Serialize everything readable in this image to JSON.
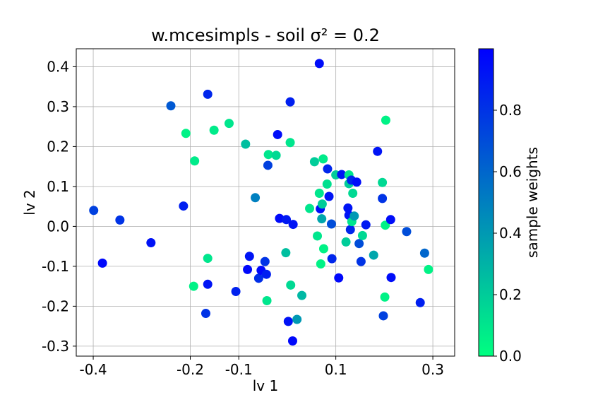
{
  "chart_data": {
    "type": "scatter",
    "title": "w.mcesimpls - soil σ² = 0.2",
    "xlabel": "lv 1",
    "ylabel": "lv 2",
    "xlim": [
      -0.435,
      0.345
    ],
    "ylim": [
      -0.325,
      0.445
    ],
    "xticks": [
      -0.4,
      -0.2,
      -0.1,
      0.1,
      0.3
    ],
    "xtick_labels": [
      "-0.4",
      "-0.2",
      "-0.1",
      "0.1",
      "0.3"
    ],
    "yticks": [
      -0.3,
      -0.2,
      -0.1,
      0.0,
      0.1,
      0.2,
      0.3,
      0.4
    ],
    "ytick_labels": [
      "-0.3",
      "-0.2",
      "-0.1",
      "0.0",
      "0.1",
      "0.2",
      "0.3",
      "0.4"
    ],
    "grid": true,
    "colorbar": {
      "label": "sample weights",
      "range": [
        0.0,
        1.0
      ],
      "ticks": [
        0.0,
        0.2,
        0.4,
        0.6,
        0.8
      ],
      "tick_labels": [
        "0.0",
        "0.2",
        "0.4",
        "0.6",
        "0.8"
      ],
      "colormap": "winter_r",
      "color_low": "#00ff80",
      "color_high": "#0000ff"
    },
    "points": [
      {
        "x": -0.399,
        "y": 0.04,
        "w": 0.75
      },
      {
        "x": -0.381,
        "y": -0.092,
        "w": 0.97
      },
      {
        "x": -0.345,
        "y": 0.016,
        "w": 0.8
      },
      {
        "x": -0.281,
        "y": -0.041,
        "w": 0.93
      },
      {
        "x": -0.24,
        "y": 0.302,
        "w": 0.65
      },
      {
        "x": -0.214,
        "y": 0.051,
        "w": 0.88
      },
      {
        "x": -0.209,
        "y": 0.233,
        "w": 0.05
      },
      {
        "x": -0.193,
        "y": -0.15,
        "w": 0.05
      },
      {
        "x": -0.191,
        "y": 0.164,
        "w": 0.08
      },
      {
        "x": -0.164,
        "y": 0.331,
        "w": 0.85
      },
      {
        "x": -0.164,
        "y": -0.08,
        "w": 0.1
      },
      {
        "x": -0.164,
        "y": -0.145,
        "w": 0.92
      },
      {
        "x": -0.168,
        "y": -0.218,
        "w": 0.8
      },
      {
        "x": -0.151,
        "y": 0.241,
        "w": 0.08
      },
      {
        "x": -0.12,
        "y": 0.258,
        "w": 0.1
      },
      {
        "x": -0.106,
        "y": -0.163,
        "w": 0.87
      },
      {
        "x": -0.086,
        "y": 0.206,
        "w": 0.25
      },
      {
        "x": -0.078,
        "y": -0.075,
        "w": 0.92
      },
      {
        "x": -0.082,
        "y": -0.108,
        "w": 0.97
      },
      {
        "x": -0.066,
        "y": 0.072,
        "w": 0.5
      },
      {
        "x": -0.059,
        "y": -0.13,
        "w": 0.82
      },
      {
        "x": -0.054,
        "y": -0.11,
        "w": 0.97
      },
      {
        "x": -0.046,
        "y": -0.088,
        "w": 0.8
      },
      {
        "x": -0.043,
        "y": -0.12,
        "w": 0.88
      },
      {
        "x": -0.042,
        "y": -0.186,
        "w": 0.1
      },
      {
        "x": -0.04,
        "y": 0.153,
        "w": 0.75
      },
      {
        "x": -0.039,
        "y": 0.18,
        "w": 0.1
      },
      {
        "x": -0.023,
        "y": 0.178,
        "w": 0.15
      },
      {
        "x": -0.02,
        "y": 0.23,
        "w": 0.95
      },
      {
        "x": -0.016,
        "y": 0.02,
        "w": 0.96
      },
      {
        "x": -0.002,
        "y": 0.017,
        "w": 0.9
      },
      {
        "x": -0.003,
        "y": -0.066,
        "w": 0.25
      },
      {
        "x": 0.002,
        "y": -0.238,
        "w": 0.93
      },
      {
        "x": 0.006,
        "y": 0.312,
        "w": 0.88
      },
      {
        "x": 0.006,
        "y": 0.21,
        "w": 0.1
      },
      {
        "x": 0.007,
        "y": -0.147,
        "w": 0.15
      },
      {
        "x": 0.012,
        "y": 0.005,
        "w": 0.92
      },
      {
        "x": 0.011,
        "y": -0.287,
        "w": 0.97
      },
      {
        "x": 0.02,
        "y": -0.233,
        "w": 0.4
      },
      {
        "x": 0.03,
        "y": -0.173,
        "w": 0.28
      },
      {
        "x": 0.046,
        "y": 0.045,
        "w": 0.1
      },
      {
        "x": 0.056,
        "y": 0.162,
        "w": 0.2
      },
      {
        "x": 0.062,
        "y": -0.024,
        "w": 0.1
      },
      {
        "x": 0.066,
        "y": 0.083,
        "w": 0.1
      },
      {
        "x": 0.066,
        "y": 0.408,
        "w": 0.95
      },
      {
        "x": 0.068,
        "y": 0.044,
        "w": 0.95
      },
      {
        "x": 0.069,
        "y": -0.094,
        "w": 0.05
      },
      {
        "x": 0.071,
        "y": 0.019,
        "w": 0.35
      },
      {
        "x": 0.072,
        "y": 0.056,
        "w": 0.2
      },
      {
        "x": 0.074,
        "y": 0.169,
        "w": 0.08
      },
      {
        "x": 0.075,
        "y": -0.056,
        "w": 0.05
      },
      {
        "x": 0.082,
        "y": 0.106,
        "w": 0.12
      },
      {
        "x": 0.083,
        "y": 0.144,
        "w": 0.85
      },
      {
        "x": 0.086,
        "y": 0.075,
        "w": 0.92
      },
      {
        "x": 0.091,
        "y": 0.006,
        "w": 0.7
      },
      {
        "x": 0.092,
        "y": -0.081,
        "w": 0.85
      },
      {
        "x": 0.1,
        "y": 0.129,
        "w": 0.2
      },
      {
        "x": 0.106,
        "y": -0.129,
        "w": 0.97
      },
      {
        "x": 0.112,
        "y": 0.13,
        "w": 0.92
      },
      {
        "x": 0.121,
        "y": -0.039,
        "w": 0.2
      },
      {
        "x": 0.125,
        "y": 0.046,
        "w": 0.92
      },
      {
        "x": 0.127,
        "y": 0.129,
        "w": 0.1
      },
      {
        "x": 0.127,
        "y": 0.107,
        "w": 0.2
      },
      {
        "x": 0.127,
        "y": 0.028,
        "w": 0.93
      },
      {
        "x": 0.13,
        "y": -0.008,
        "w": 0.85
      },
      {
        "x": 0.132,
        "y": 0.116,
        "w": 0.85
      },
      {
        "x": 0.133,
        "y": 0.012,
        "w": 0.1
      },
      {
        "x": 0.135,
        "y": 0.083,
        "w": 0.15
      },
      {
        "x": 0.138,
        "y": 0.026,
        "w": 0.4
      },
      {
        "x": 0.143,
        "y": 0.111,
        "w": 0.95
      },
      {
        "x": 0.148,
        "y": -0.043,
        "w": 0.7
      },
      {
        "x": 0.152,
        "y": -0.088,
        "w": 0.8
      },
      {
        "x": 0.155,
        "y": -0.023,
        "w": 0.15
      },
      {
        "x": 0.162,
        "y": 0.004,
        "w": 0.9
      },
      {
        "x": 0.178,
        "y": -0.072,
        "w": 0.35
      },
      {
        "x": 0.186,
        "y": 0.188,
        "w": 0.92
      },
      {
        "x": 0.196,
        "y": 0.11,
        "w": 0.15
      },
      {
        "x": 0.196,
        "y": 0.07,
        "w": 0.8
      },
      {
        "x": 0.198,
        "y": -0.224,
        "w": 0.75
      },
      {
        "x": 0.201,
        "y": -0.177,
        "w": 0.05
      },
      {
        "x": 0.202,
        "y": 0.003,
        "w": 0.05
      },
      {
        "x": 0.203,
        "y": 0.266,
        "w": 0.05
      },
      {
        "x": 0.213,
        "y": 0.017,
        "w": 0.95
      },
      {
        "x": 0.214,
        "y": -0.128,
        "w": 0.95
      },
      {
        "x": 0.246,
        "y": -0.013,
        "w": 0.7
      },
      {
        "x": 0.274,
        "y": -0.191,
        "w": 0.88
      },
      {
        "x": 0.283,
        "y": -0.067,
        "w": 0.6
      },
      {
        "x": 0.291,
        "y": -0.108,
        "w": 0.05
      }
    ]
  }
}
